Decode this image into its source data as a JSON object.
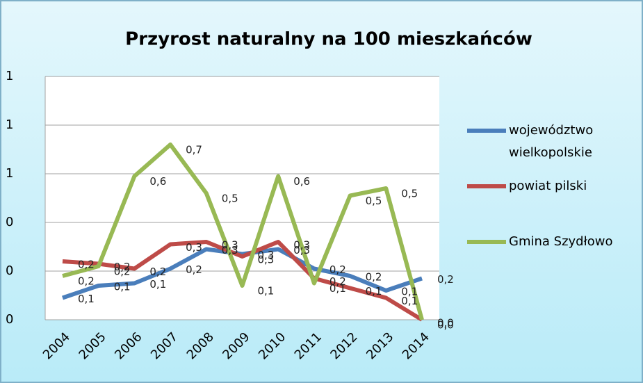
{
  "chart_data": {
    "type": "line",
    "title": "Przyrost naturalny na 100 mieszkańców",
    "categories": [
      "2004",
      "2005",
      "2006",
      "2007",
      "2008",
      "2009",
      "2010",
      "2011",
      "2012",
      "2013",
      "2014"
    ],
    "series": [
      {
        "name": "województwo wielkopolskie",
        "color": "#4a7ebb",
        "values": [
          0.09,
          0.14,
          0.15,
          0.21,
          0.29,
          0.27,
          0.29,
          0.21,
          0.18,
          0.12,
          0.17
        ],
        "value_labels": [
          "0,1",
          "0,1",
          "0,1",
          "0,2",
          "0,3",
          "0,3",
          "0,3",
          "0,2",
          "0,2",
          "0,1",
          "0,2"
        ]
      },
      {
        "name": "powiat pilski",
        "color": "#be4b48",
        "values": [
          0.24,
          0.23,
          0.21,
          0.31,
          0.32,
          0.26,
          0.32,
          0.17,
          0.13,
          0.09,
          0.0
        ],
        "value_labels": [
          "0,2",
          "0,2",
          "0,2",
          "0,3",
          "0,3",
          "0,3",
          "0,3",
          "0,2",
          "0,1",
          "0,1",
          "0,0"
        ]
      },
      {
        "name": "Gmina Szydłowo",
        "color": "#98b954",
        "values": [
          0.18,
          0.22,
          0.59,
          0.72,
          0.52,
          0.14,
          0.59,
          0.15,
          0.51,
          0.54,
          0.0
        ],
        "value_labels": [
          "0,2",
          "0,2",
          "0,6",
          "0,7",
          "0,5",
          "0,1",
          "0,6",
          "0,1",
          "0,5",
          "0,5",
          "0,0"
        ]
      }
    ],
    "ylim": [
      0,
      1.0
    ],
    "yticks": [
      0,
      {
        "value": 0.2,
        "label": "0"
      },
      {
        "value": 0.4,
        "label": "0"
      },
      {
        "value": 0.6,
        "label": "1"
      },
      {
        "value": 0.8,
        "label": "1"
      },
      {
        "value": 1.0,
        "label": "1"
      }
    ],
    "grid": true,
    "legend": "right"
  }
}
